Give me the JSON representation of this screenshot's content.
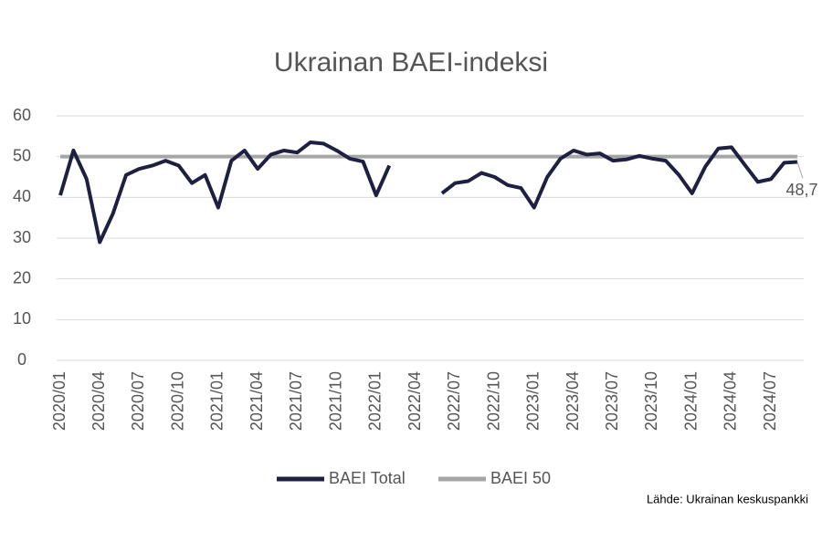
{
  "chart_data": {
    "type": "line",
    "title": "Ukrainan BAEI-indeksi",
    "source": "Lähde: Ukrainan keskuspankki",
    "categories": [
      "2020/01",
      null,
      null,
      "2020/04",
      null,
      null,
      "2020/07",
      null,
      null,
      "2020/10",
      null,
      null,
      "2021/01",
      null,
      null,
      "2021/04",
      null,
      null,
      "2021/07",
      null,
      null,
      "2021/10",
      null,
      null,
      "2022/01",
      null,
      null,
      "2022/04",
      null,
      null,
      "2022/07",
      null,
      null,
      "2022/10",
      null,
      null,
      "2023/01",
      null,
      null,
      "2023/04",
      null,
      null,
      "2023/07",
      null,
      null,
      "2023/10",
      null,
      null,
      "2024/01",
      null,
      null,
      "2024/04",
      null,
      null,
      "2024/07",
      null,
      null
    ],
    "series": [
      {
        "name": "BAEI Total",
        "color": "#1f2041",
        "values": [
          40.5,
          51.5,
          44.5,
          29,
          36,
          45.5,
          47,
          47.8,
          49,
          47.8,
          43.5,
          45.5,
          37.5,
          49,
          51.5,
          47,
          50.5,
          51.5,
          51,
          53.5,
          53.2,
          51.5,
          49.5,
          48.8,
          40.5,
          47.8,
          null,
          null,
          null,
          41,
          43.5,
          44,
          46,
          45,
          43,
          42.3,
          37.5,
          45,
          49.5,
          51.5,
          50.5,
          50.8,
          49,
          49.3,
          50.2,
          49.5,
          49,
          45.5,
          41,
          47.5,
          52,
          52.3,
          48,
          43.8,
          44.5,
          48.5,
          48.7
        ],
        "value_labels": [
          null,
          null,
          null,
          null,
          null,
          null,
          null,
          null,
          null,
          null,
          null,
          null,
          null,
          null,
          null,
          null,
          null,
          null,
          null,
          null,
          null,
          null,
          null,
          null,
          null,
          null,
          null,
          null,
          null,
          null,
          null,
          null,
          null,
          null,
          null,
          null,
          null,
          null,
          null,
          null,
          null,
          null,
          null,
          null,
          null,
          null,
          null,
          null,
          null,
          null,
          null,
          null,
          null,
          null,
          null,
          null,
          "48,7"
        ]
      },
      {
        "name": "BAEI 50",
        "color": "#a6a6a6",
        "values": [
          50,
          50,
          50,
          50,
          50,
          50,
          50,
          50,
          50,
          50,
          50,
          50,
          50,
          50,
          50,
          50,
          50,
          50,
          50,
          50,
          50,
          50,
          50,
          50,
          50,
          50,
          50,
          50,
          50,
          50,
          50,
          50,
          50,
          50,
          50,
          50,
          50,
          50,
          50,
          50,
          50,
          50,
          50,
          50,
          50,
          50,
          50,
          50,
          50,
          50,
          50,
          50,
          50,
          50,
          50,
          50,
          50
        ]
      }
    ],
    "ylim": [
      0,
      60
    ],
    "yticks": [
      0,
      10,
      20,
      30,
      40,
      50,
      60
    ],
    "grid": true
  }
}
